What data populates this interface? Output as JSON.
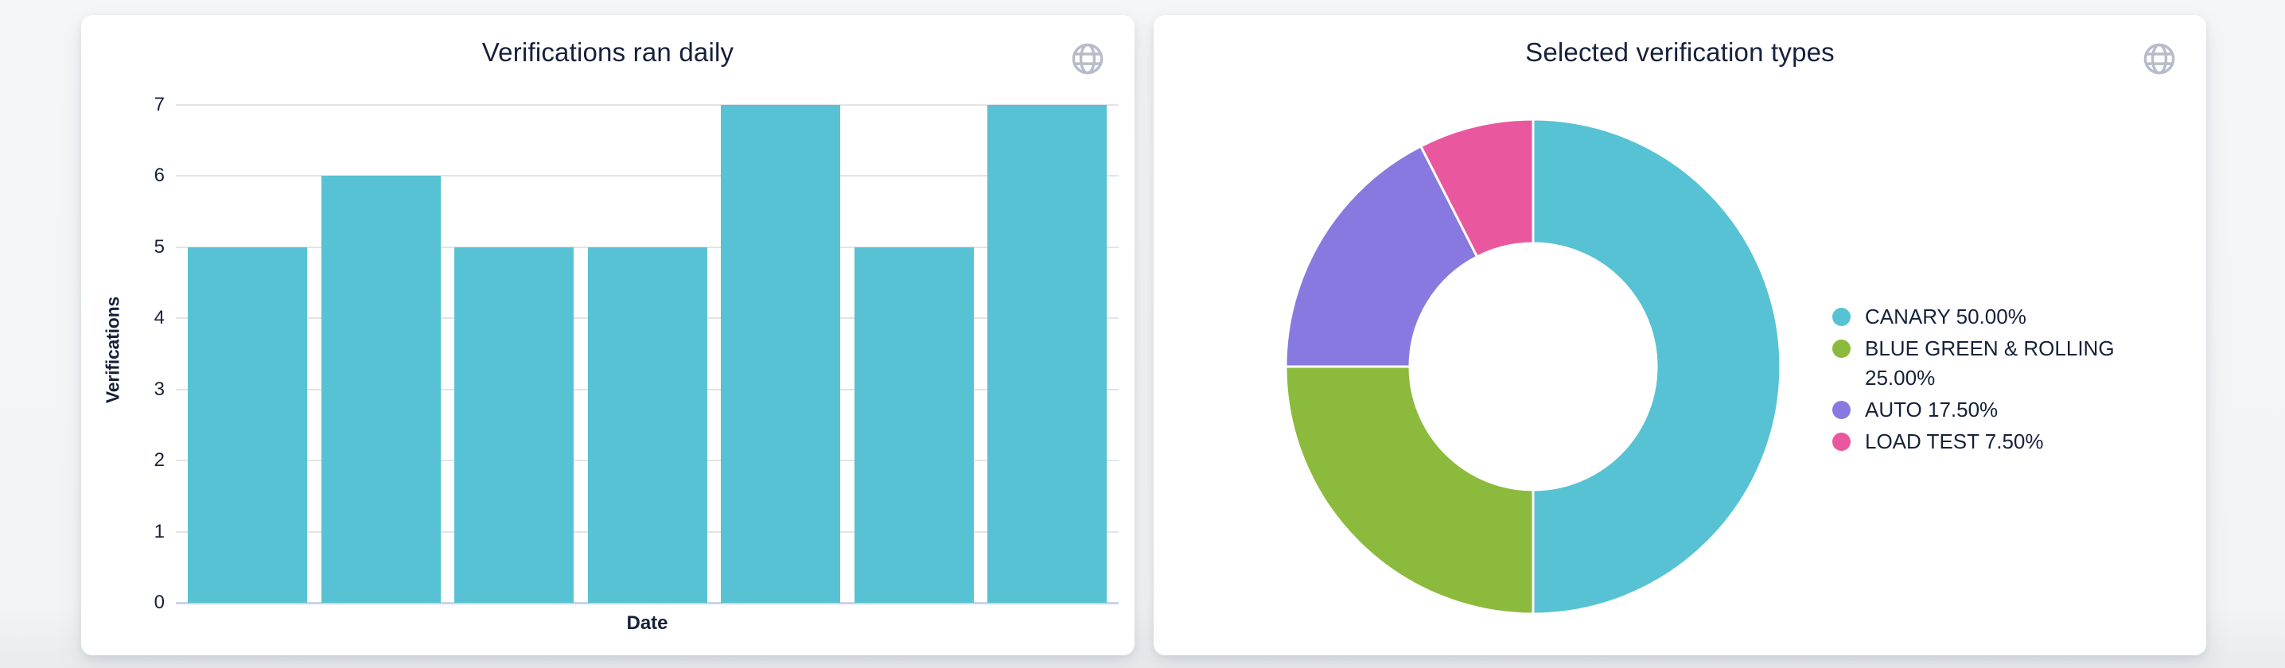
{
  "page": {
    "background_color": "#f2f4f6",
    "card_color": "#ffffff",
    "text_color": "#16213a"
  },
  "bar_card": {
    "globe_icon": "globe-icon",
    "globe_icon_color": "#b6bcc8"
  },
  "donut_card": {
    "globe_icon": "globe-icon",
    "globe_icon_color": "#b6bcc8"
  },
  "chart_data": [
    {
      "type": "bar",
      "title": "Verifications ran daily",
      "xlabel": "Date",
      "ylabel": "Verifications",
      "values": [
        5,
        6,
        5,
        5,
        7,
        5,
        7
      ],
      "ylim": [
        0,
        7
      ],
      "yticks": [
        0,
        1,
        2,
        3,
        4,
        5,
        6,
        7
      ],
      "grid": true,
      "bar_color": "#57c2d3",
      "gridline_color": "#e3e4e6",
      "baseline_color": "#ccd3e8",
      "x_tick_labels": []
    },
    {
      "type": "pie",
      "subtype": "donut",
      "title": "Selected verification types",
      "legend_position": "right",
      "start_angle_deg": 0,
      "direction": "clockwise",
      "inner_radius_ratio": 0.49,
      "series": [
        {
          "name": "CANARY",
          "value": 50.0,
          "label": "CANARY 50.00%",
          "color": "#57c2d3"
        },
        {
          "name": "BLUE GREEN & ROLLING",
          "value": 25.0,
          "label": "BLUE GREEN & ROLLING 25.00%",
          "color": "#8cba3d"
        },
        {
          "name": "AUTO",
          "value": 17.5,
          "label": "AUTO 17.50%",
          "color": "#8879e0"
        },
        {
          "name": "LOAD TEST",
          "value": 7.5,
          "label": "LOAD TEST 7.50%",
          "color": "#e9589e"
        }
      ]
    }
  ]
}
